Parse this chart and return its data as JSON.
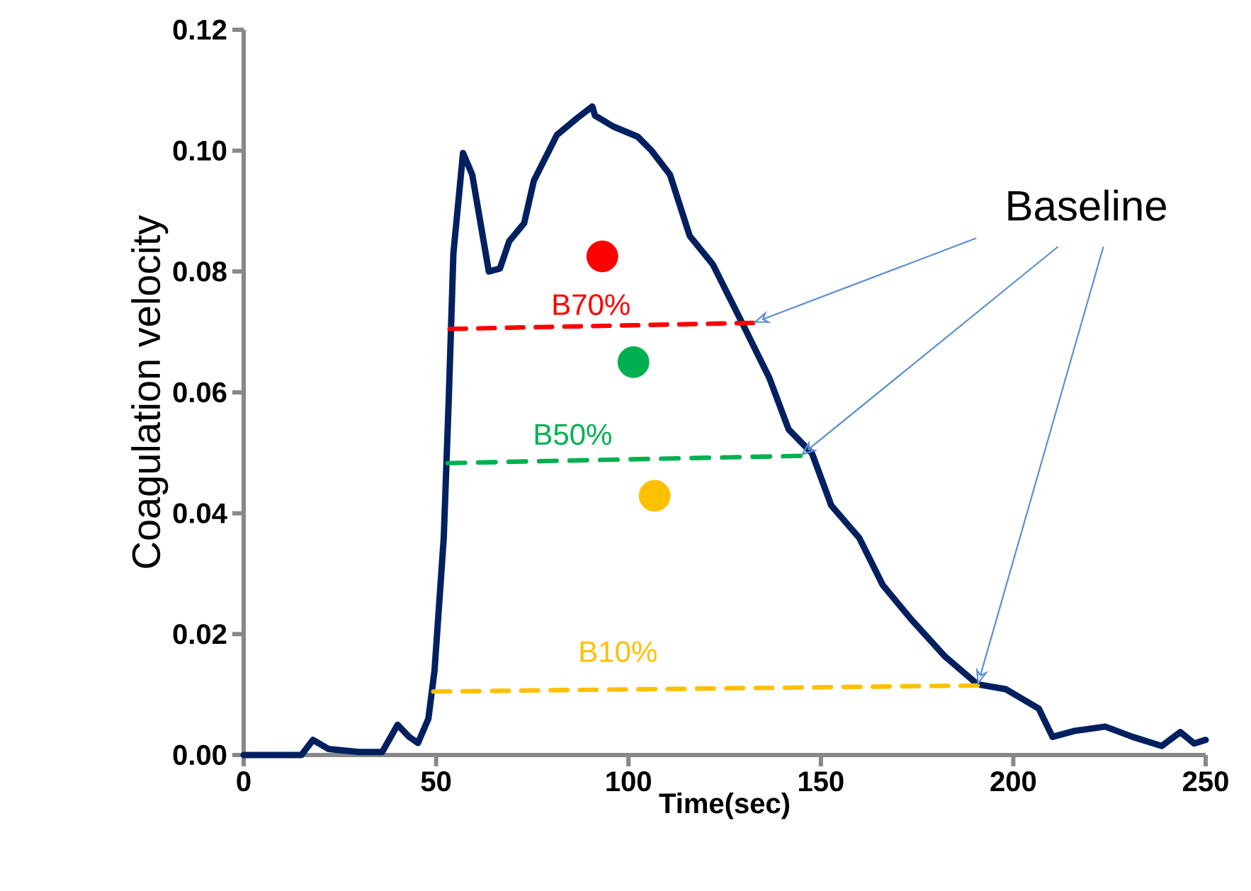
{
  "chart_data": {
    "type": "line",
    "xlabel": "Time(sec)",
    "ylabel": "Coagulation velocity",
    "xlim": [
      0,
      250
    ],
    "xticks": [
      0,
      50,
      100,
      150,
      200,
      250
    ],
    "ylim": [
      0,
      0.12
    ],
    "yticks": [
      {
        "value": 0,
        "label": "0.00"
      },
      0.02,
      0.04,
      0.06,
      0.08,
      {
        "value": 0.1,
        "label": "0.10"
      },
      0.12
    ],
    "grid": false,
    "series": [
      {
        "color": "#002060",
        "marker": "none",
        "line_style": "solid",
        "x": [
          0,
          5,
          15,
          18,
          22,
          30,
          36,
          40,
          43,
          45.3,
          48,
          49.6,
          52,
          53.3,
          54.5,
          57,
          59.4,
          63.7,
          66.6,
          69,
          72.9,
          75.4,
          81.4,
          86.9,
          90.6,
          91.3,
          96,
          102.4,
          106,
          110.8,
          115.9,
          121.9,
          129.3,
          136.6,
          141.6,
          147.7,
          152.7,
          160,
          166.1,
          173.4,
          182.1,
          190.7,
          198,
          206.6,
          210.2,
          216,
          223.9,
          231,
          238.6,
          243.4,
          247,
          250
        ],
        "values": [
          0,
          0,
          0,
          0.0025,
          0.001,
          0.0005,
          0.0005,
          0.005,
          0.003,
          0.002,
          0.006,
          0.014,
          0.036,
          0.059,
          0.083,
          0.0996,
          0.096,
          0.08,
          0.0805,
          0.085,
          0.088,
          0.095,
          0.1026,
          0.1055,
          0.1073,
          0.1058,
          0.104,
          0.1023,
          0.1,
          0.096,
          0.0859,
          0.0812,
          0.0718,
          0.0624,
          0.0539,
          0.0499,
          0.0413,
          0.0359,
          0.0281,
          0.0225,
          0.0164,
          0.0117,
          0.0109,
          0.0077,
          0.003,
          0.004,
          0.0047,
          0.003,
          0.0015,
          0.0038,
          0.0019,
          0.0025
        ]
      },
      {
        "type": "line",
        "color": "#ff0000",
        "marker": "none",
        "line_style": "dashed",
        "x": [
          53.5,
          132.4
        ],
        "values": [
          0.0705,
          0.0715
        ]
      },
      {
        "type": "line",
        "color": "#00b050",
        "marker": "none",
        "line_style": "dashed",
        "x": [
          53,
          144.7
        ],
        "values": [
          0.0483,
          0.0495
        ]
      },
      {
        "type": "line",
        "color": "#ffc000",
        "marker": "none",
        "line_style": "dashed",
        "x": [
          49.3,
          190.7
        ],
        "values": [
          0.0105,
          0.0115
        ]
      },
      {
        "type": "scatter",
        "color": "#ff0000",
        "marker": "circle",
        "x": [
          93.2
        ],
        "values": [
          0.0825
        ]
      },
      {
        "type": "scatter",
        "color": "#00b050",
        "marker": "circle",
        "x": [
          101.3
        ],
        "values": [
          0.065
        ]
      },
      {
        "type": "scatter",
        "color": "#ffc000",
        "marker": "circle",
        "x": [
          106.8
        ],
        "values": [
          0.0429
        ]
      }
    ],
    "annotations": [
      "B70%",
      "B50%",
      "B10%",
      {
        "text": "Baseline",
        "x": 144.7,
        "y": 0.0495
      }
    ]
  }
}
